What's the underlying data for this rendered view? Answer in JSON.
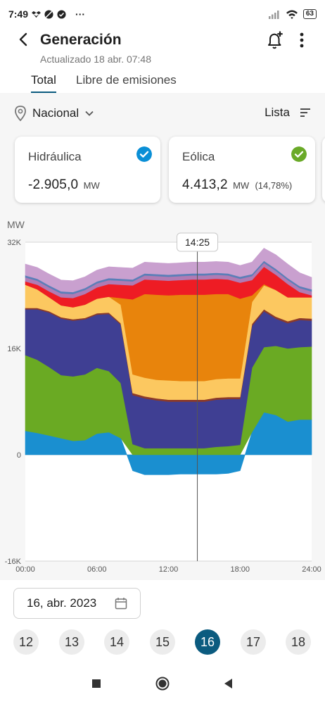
{
  "status_bar": {
    "time": "7:49",
    "more": "···",
    "battery": "63"
  },
  "header": {
    "title": "Generación",
    "subtitle": "Actualizado 18 abr. 07:48"
  },
  "tabs": [
    {
      "label": "Total",
      "active": true
    },
    {
      "label": "Libre de emisiones",
      "active": false
    }
  ],
  "filters": {
    "region": "Nacional",
    "view": "Lista"
  },
  "cards": [
    {
      "name": "Hidráulica",
      "value": "-2.905,0",
      "unit": "MW",
      "percent": "",
      "check_color": "#0a8fd6"
    },
    {
      "name": "Eólica",
      "value": "4.413,2",
      "unit": "MW",
      "percent": "(14,78%)",
      "check_color": "#6aaa28"
    }
  ],
  "chart_data": {
    "type": "area",
    "ylabel": "MW",
    "ylim": [
      -16000,
      32000
    ],
    "y_ticks": [
      "32K",
      "16K",
      "0",
      "-16K"
    ],
    "y_tick_values": [
      32000,
      16000,
      0,
      -16000
    ],
    "x_ticks": [
      "00:00",
      "06:00",
      "12:00",
      "18:00",
      "24:00"
    ],
    "x_tick_values": [
      0,
      6,
      12,
      18,
      24
    ],
    "cursor_label": "14:25",
    "cursor_x": 14.42,
    "x": [
      0,
      1,
      2,
      3,
      4,
      5,
      6,
      7,
      8,
      9,
      10,
      11,
      12,
      13,
      14,
      15,
      16,
      17,
      18,
      19,
      20,
      21,
      22,
      23,
      24
    ],
    "series": [
      {
        "color": "#1a8fd0",
        "values": [
          3600,
          3300,
          2900,
          2500,
          2100,
          2200,
          3200,
          3400,
          2500,
          -2400,
          -3000,
          -3000,
          -3000,
          -2900,
          -2900,
          -2900,
          -2900,
          -2800,
          -2400,
          3400,
          6400,
          6000,
          5000,
          5300,
          5300
        ]
      },
      {
        "color": "#6aaa23",
        "values": [
          11400,
          11000,
          10300,
          9500,
          9700,
          9900,
          9900,
          9200,
          8300,
          1600,
          1000,
          1000,
          1000,
          1000,
          1000,
          1000,
          1200,
          1300,
          1500,
          9700,
          9800,
          10400,
          11000,
          10900,
          11000
        ]
      },
      {
        "color": "#3f3f93",
        "values": [
          6900,
          7600,
          8200,
          8500,
          8400,
          8300,
          8000,
          8600,
          8800,
          7400,
          7500,
          7200,
          7000,
          7000,
          7000,
          7000,
          7100,
          7100,
          6900,
          6300,
          5400,
          4100,
          3800,
          4100,
          3900
        ]
      },
      {
        "color": "#8b3a2a",
        "values": [
          200,
          200,
          200,
          200,
          200,
          200,
          200,
          200,
          200,
          300,
          300,
          300,
          300,
          300,
          300,
          300,
          300,
          300,
          300,
          300,
          300,
          300,
          300,
          300,
          300
        ]
      },
      {
        "color": "#fcc860",
        "values": [
          3500,
          2800,
          2100,
          1800,
          1800,
          2000,
          2200,
          2400,
          2800,
          2800,
          2800,
          2800,
          2900,
          2800,
          2800,
          2800,
          2800,
          2800,
          2800,
          3300,
          3600,
          4000,
          3600,
          3100,
          3200
        ]
      },
      {
        "color": "#e8840c",
        "values": [
          0,
          0,
          0,
          0,
          0,
          0,
          0,
          0,
          1000,
          11300,
          12600,
          12800,
          12800,
          13000,
          13000,
          13000,
          12800,
          12700,
          12000,
          1000,
          200,
          0,
          0,
          0,
          0
        ]
      },
      {
        "color": "#ee1c24",
        "values": [
          500,
          700,
          900,
          1200,
          1400,
          1600,
          1700,
          1900,
          2000,
          2100,
          2200,
          2200,
          2200,
          2200,
          2300,
          2300,
          2300,
          2200,
          2400,
          2300,
          2600,
          2300,
          2000,
          800,
          300
        ]
      },
      {
        "color": "#b07bb4",
        "values": [
          600,
          600,
          600,
          600,
          600,
          600,
          600,
          600,
          600,
          600,
          600,
          600,
          600,
          600,
          600,
          600,
          600,
          600,
          600,
          600,
          600,
          600,
          600,
          600,
          600
        ]
      },
      {
        "color": "#5b7fb8",
        "values": [
          300,
          300,
          300,
          300,
          300,
          300,
          300,
          300,
          300,
          300,
          300,
          300,
          300,
          300,
          300,
          300,
          300,
          300,
          300,
          300,
          300,
          300,
          300,
          300,
          300
        ]
      },
      {
        "color": "#c9a0cf",
        "values": [
          1700,
          1700,
          1700,
          1700,
          1700,
          1700,
          1700,
          1700,
          1700,
          1700,
          1700,
          1700,
          1700,
          1700,
          1700,
          1700,
          1700,
          1700,
          1700,
          1800,
          1900,
          2100,
          2100,
          2000,
          1800
        ]
      }
    ]
  },
  "date_picker": {
    "value": "16, abr. 2023"
  },
  "days": [
    {
      "label": "12",
      "active": false
    },
    {
      "label": "13",
      "active": false
    },
    {
      "label": "14",
      "active": false
    },
    {
      "label": "15",
      "active": false
    },
    {
      "label": "16",
      "active": true
    },
    {
      "label": "17",
      "active": false
    },
    {
      "label": "18",
      "active": false
    }
  ],
  "colors": {
    "accent": "#0b5b7f"
  }
}
